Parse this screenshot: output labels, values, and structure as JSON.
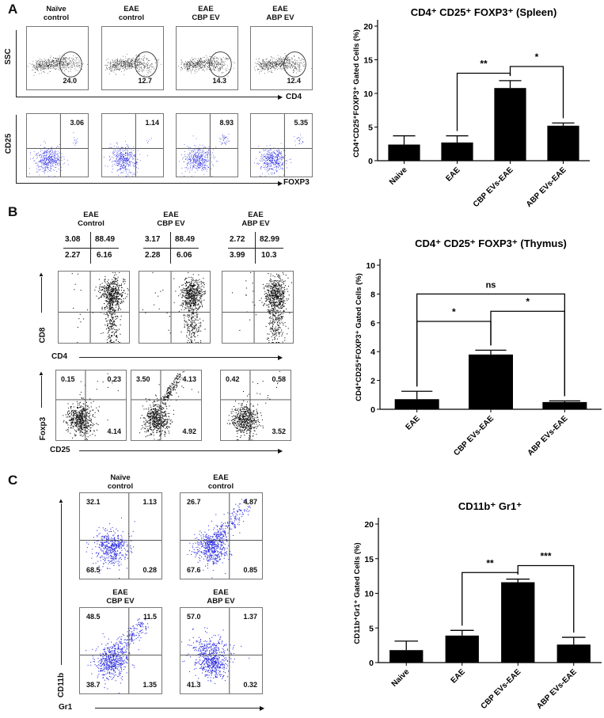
{
  "panel_a": {
    "label": "A",
    "axis_ssc": "SSC",
    "axis_cd4": "CD4",
    "axis_cd25": "CD25",
    "axis_foxp3": "FOXP3",
    "columns": [
      {
        "line1": "Naïve",
        "line2": "control",
        "cd4_gate": "24.0",
        "treg": "3.06"
      },
      {
        "line1": "EAE",
        "line2": "control",
        "cd4_gate": "12.7",
        "treg": "1.14"
      },
      {
        "line1": "EAE",
        "line2": "CBP EV",
        "cd4_gate": "14.3",
        "treg": "8.93"
      },
      {
        "line1": "EAE",
        "line2": "ABP EV",
        "cd4_gate": "12.4",
        "treg": "5.35"
      }
    ]
  },
  "panel_b": {
    "label": "B",
    "axis_cd8": "CD8",
    "axis_cd4": "CD4",
    "axis_foxp3": "Foxp3",
    "axis_cd25": "CD25",
    "columns": [
      {
        "line1": "EAE",
        "line2": "Control",
        "quadrants": [
          "3.08",
          "88.49",
          "2.27",
          "6.16"
        ],
        "foxp3": [
          "0.15",
          "0.23",
          "4.14"
        ]
      },
      {
        "line1": "EAE",
        "line2": "CBP EV",
        "quadrants": [
          "3.17",
          "88.49",
          "2.28",
          "6.06"
        ],
        "foxp3": [
          "3.50",
          "4.13",
          "4.92"
        ]
      },
      {
        "line1": "EAE",
        "line2": "ABP EV",
        "quadrants": [
          "2.72",
          "82.99",
          "3.99",
          "10.3"
        ],
        "foxp3": [
          "0.42",
          "0.58",
          "3.52"
        ]
      }
    ]
  },
  "panel_c": {
    "label": "C",
    "axis_cd11b": "CD11b",
    "axis_gr1": "Gr1",
    "plots": [
      {
        "line1": "Naïve",
        "line2": "control",
        "quadrants": [
          "32.1",
          "1.13",
          "68.5",
          "0.28"
        ]
      },
      {
        "line1": "EAE",
        "line2": "control",
        "quadrants": [
          "26.7",
          "4.87",
          "67.6",
          "0.85"
        ]
      },
      {
        "line1": "EAE",
        "line2": "CBP EV",
        "quadrants": [
          "48.5",
          "11.5",
          "38.7",
          "1.35"
        ]
      },
      {
        "line1": "EAE",
        "line2": "ABP EV",
        "quadrants": [
          "57.0",
          "1.37",
          "41.3",
          "0.32"
        ]
      }
    ]
  },
  "colors": {
    "bar": "#000000",
    "flow_blue": "#2a2ae0",
    "flow_black": "#111111"
  },
  "chart_data": [
    {
      "type": "bar",
      "title": "CD4⁺ CD25⁺ FOXP3⁺ (Spleen)",
      "ylabel": "CD4⁺CD25⁺FOXP3⁺ Gated Cells (%)",
      "xlabel": "",
      "categories": [
        "Naive",
        "EAE",
        "CBP EVs-EAE",
        "ABP EVs-EAE"
      ],
      "values": [
        2.4,
        2.7,
        10.8,
        5.2
      ],
      "errors": [
        1.3,
        1.0,
        1.1,
        0.4
      ],
      "ylim": [
        0,
        20
      ],
      "yticks": [
        "0",
        "5",
        "10",
        "15",
        "20"
      ],
      "significance": [
        {
          "from": 1,
          "to": 2,
          "level": 13.0,
          "label": "**"
        },
        {
          "from": 2,
          "to": 3,
          "level": 14.0,
          "label": "*"
        }
      ]
    },
    {
      "type": "bar",
      "title": "CD4⁺ CD25⁺ FOXP3⁺ (Thymus)",
      "ylabel": "CD4⁺CD25⁺FOXP3⁺ Gated Cells (%)",
      "xlabel": "",
      "categories": [
        "EAE",
        "CBP EVs-EAE",
        "ABP EVs-EAE"
      ],
      "values": [
        0.7,
        3.8,
        0.5
      ],
      "errors": [
        0.55,
        0.3,
        0.08
      ],
      "ylim": [
        0,
        10
      ],
      "yticks": [
        "0",
        "2",
        "4",
        "6",
        "8",
        "10"
      ],
      "significance": [
        {
          "from": 0,
          "to": 2,
          "level": 8.0,
          "label": "ns"
        },
        {
          "from": 0,
          "to": 1,
          "level": 6.1,
          "label": "*"
        },
        {
          "from": 1,
          "to": 2,
          "level": 6.8,
          "label": "*"
        }
      ]
    },
    {
      "type": "bar",
      "title": "CD11b⁺ Gr1⁺",
      "ylabel": "CD11b⁺Gr1⁺ Gated Cells (%)",
      "xlabel": "",
      "categories": [
        "Naive",
        "EAE",
        "CBP EVs-EAE",
        "ABP EVs-EAE"
      ],
      "values": [
        1.8,
        3.9,
        11.6,
        2.6
      ],
      "errors": [
        1.3,
        0.75,
        0.45,
        1.05
      ],
      "ylim": [
        0,
        20
      ],
      "yticks": [
        "0",
        "5",
        "10",
        "15",
        "20"
      ],
      "significance": [
        {
          "from": 1,
          "to": 2,
          "level": 13.0,
          "label": "**"
        },
        {
          "from": 2,
          "to": 3,
          "level": 14.0,
          "label": "***"
        }
      ]
    }
  ]
}
